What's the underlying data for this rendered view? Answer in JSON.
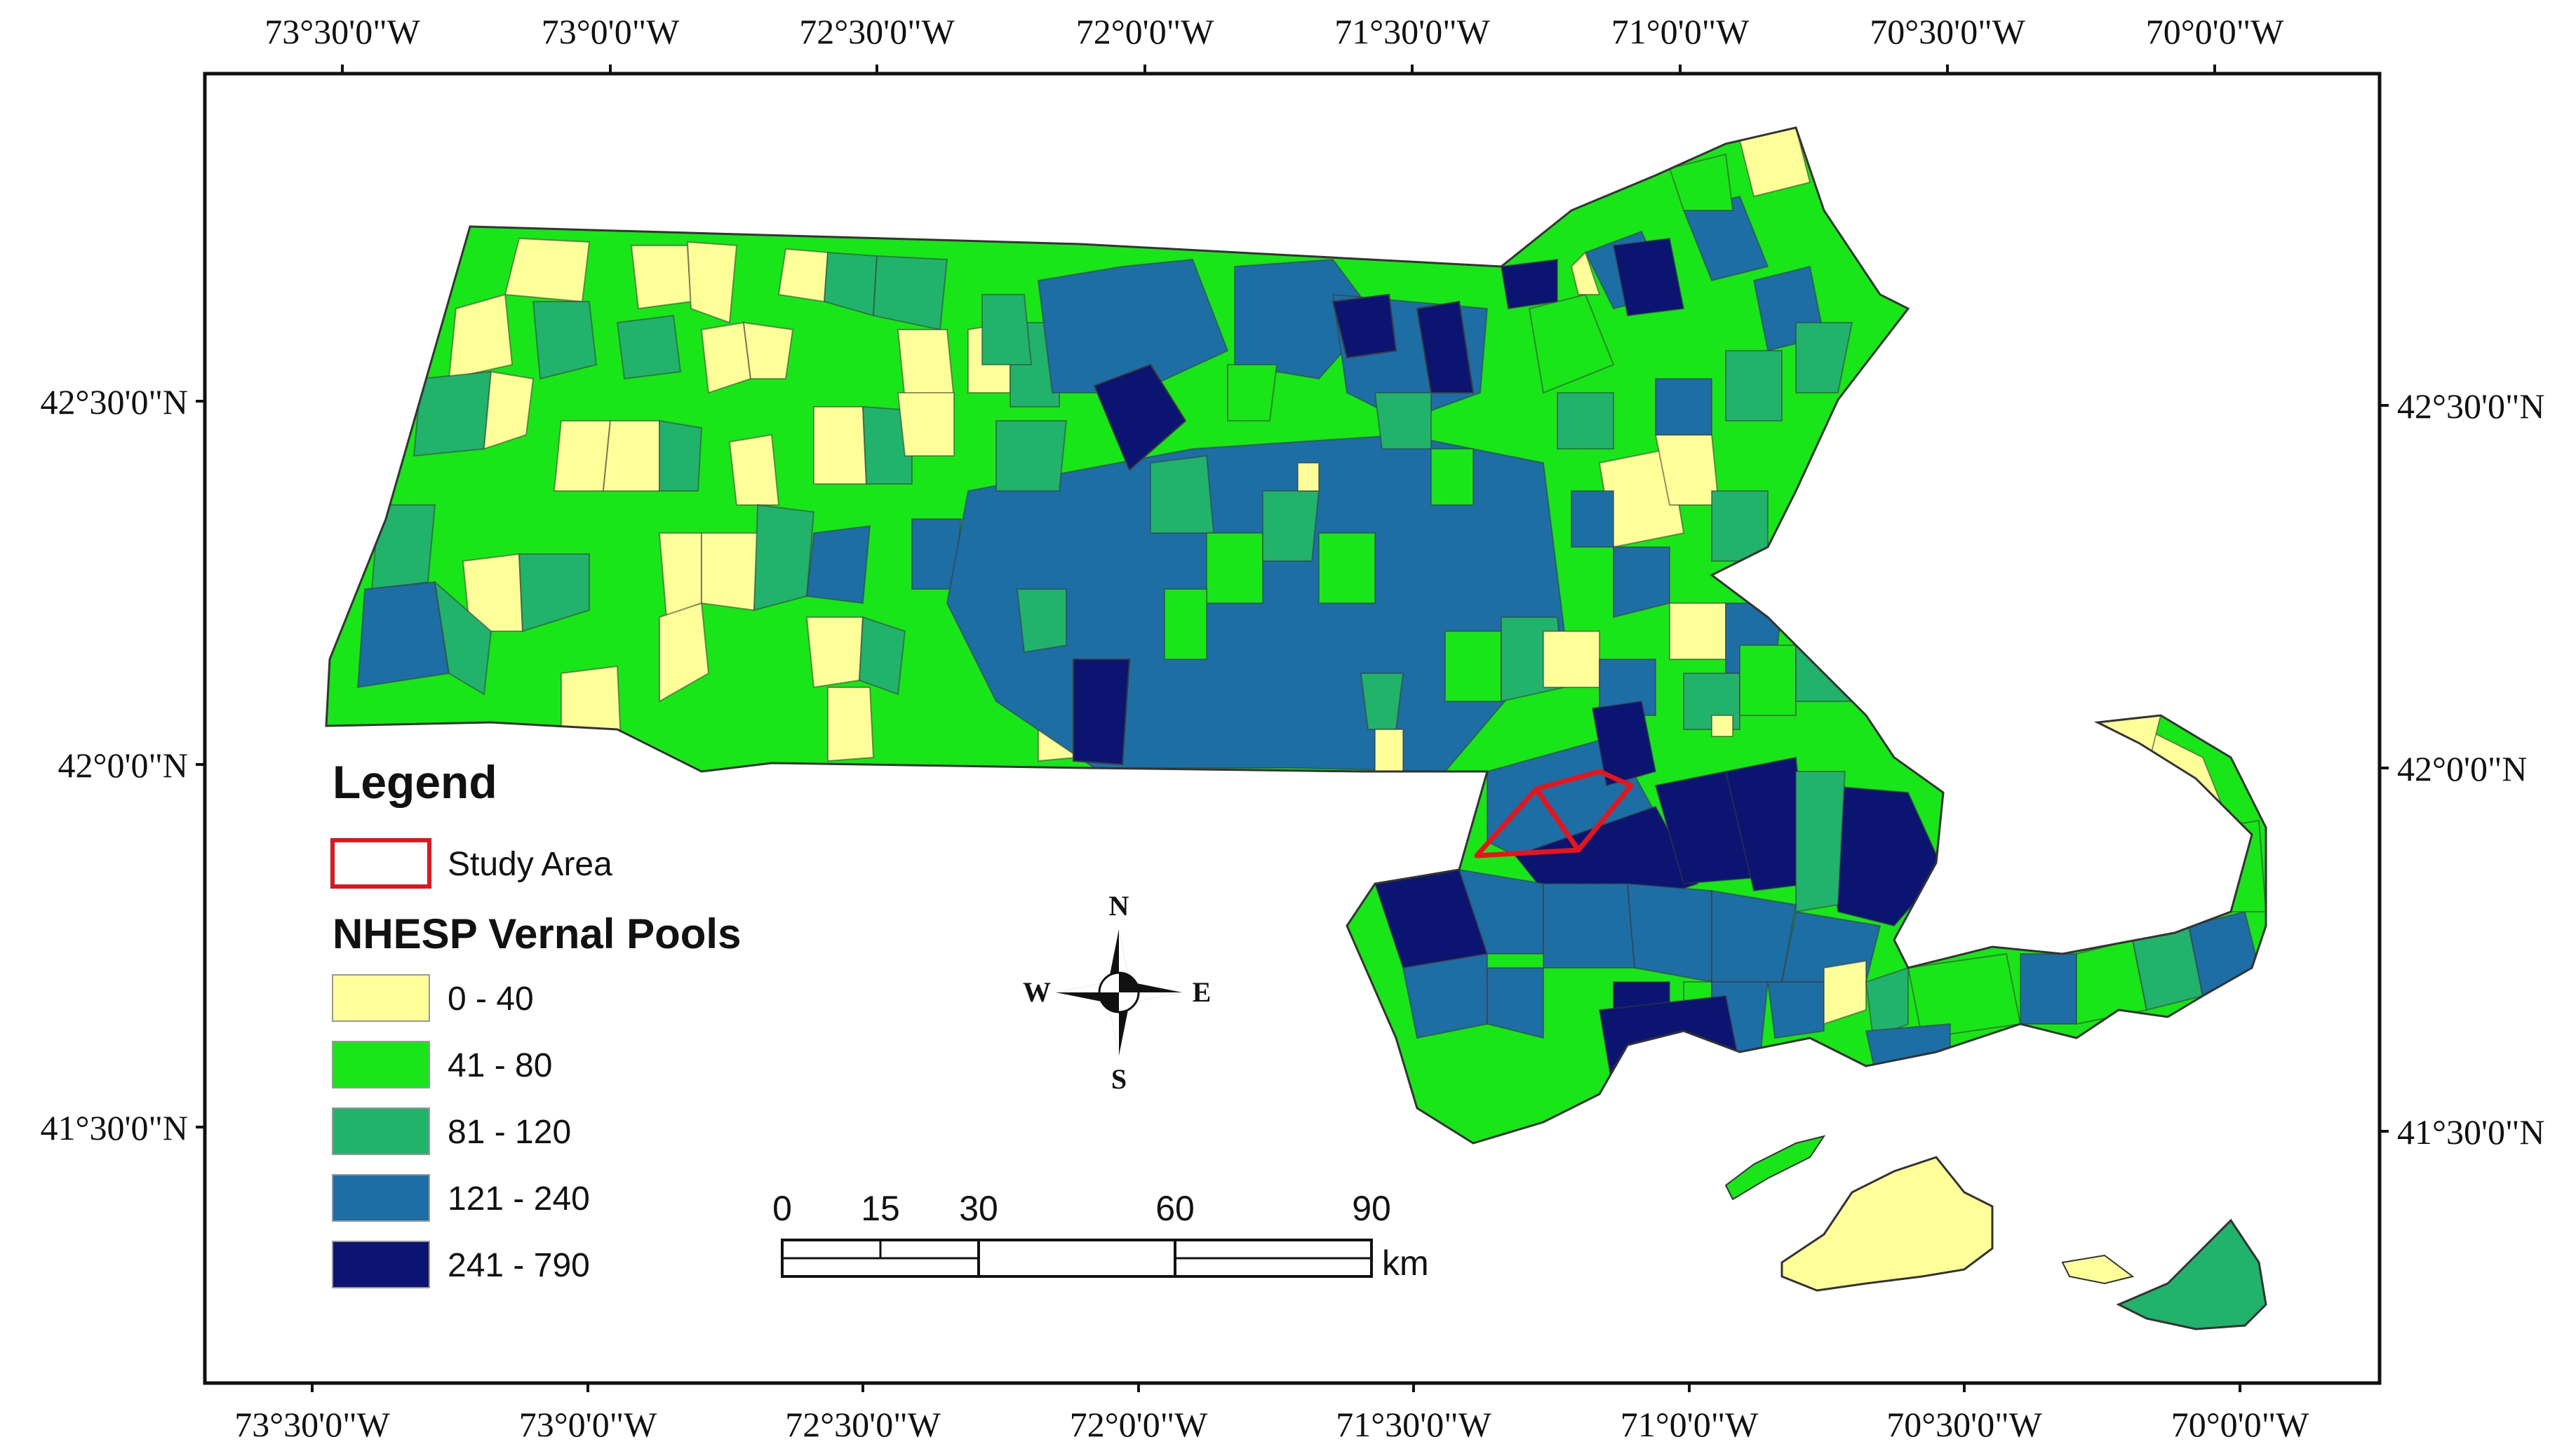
{
  "map": {
    "lon_ticks": [
      "73°30'0\"W",
      "73°0'0\"W",
      "72°30'0\"W",
      "72°0'0\"W",
      "71°30'0\"W",
      "71°0'0\"W",
      "70°30'0\"W",
      "70°0'0\"W"
    ],
    "lat_ticks": [
      "42°30'0\"N",
      "42°0'0\"N",
      "41°30'0\"N"
    ]
  },
  "legend": {
    "title": "Legend",
    "study_area_label": "Study Area",
    "pools_title": "NHESP Vernal Pools",
    "classes": [
      {
        "label": "0 - 40",
        "color": "#ffff99"
      },
      {
        "label": "41 - 80",
        "color": "#19e619"
      },
      {
        "label": "81 - 120",
        "color": "#21b36b"
      },
      {
        "label": "121 - 240",
        "color": "#1c6ea4"
      },
      {
        "label": "241 - 790",
        "color": "#0c1472"
      }
    ],
    "study_area_color": "#e8141c"
  },
  "compass": {
    "n": "N",
    "s": "S",
    "e": "E",
    "w": "W"
  },
  "scale_bar": {
    "ticks": [
      "0",
      "15",
      "30",
      "60",
      "90"
    ],
    "unit": "km"
  }
}
